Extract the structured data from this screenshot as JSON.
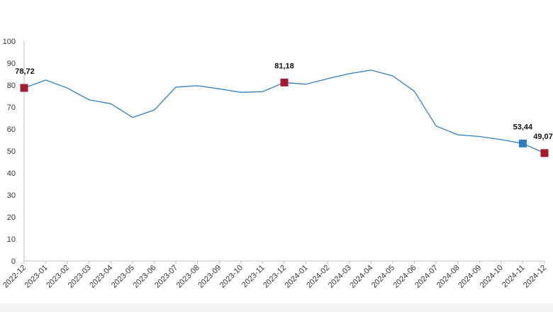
{
  "chart_data": {
    "type": "line",
    "title": "",
    "xlabel": "",
    "ylabel": "",
    "ylim": [
      0,
      100
    ],
    "yticks": [
      0,
      10,
      20,
      30,
      40,
      50,
      60,
      70,
      80,
      90,
      100
    ],
    "grid": false,
    "legend": "none",
    "line_color": "#2e7fc1",
    "categories": [
      "2022-12",
      "2023-01",
      "2023-02",
      "2023-03",
      "2023-04",
      "2023-05",
      "2023-06",
      "2023-07",
      "2023-08",
      "2023-09",
      "2023-10",
      "2023-11",
      "2023-12",
      "2024-01",
      "2024-02",
      "2024-03",
      "2024-04",
      "2024-05",
      "2024-06",
      "2024-07",
      "2024-08",
      "2024-09",
      "2024-10",
      "2024-11",
      "2024-12"
    ],
    "series": [
      {
        "values": [
          78.72,
          82.3,
          78.6,
          73.3,
          71.5,
          65.3,
          68.6,
          79.1,
          79.7,
          78.3,
          76.7,
          77.0,
          81.18,
          80.4,
          82.9,
          85.2,
          86.8,
          84.2,
          77.2,
          61.4,
          57.4,
          56.6,
          55.2,
          53.44,
          49.07
        ]
      }
    ],
    "highlights": [
      {
        "index": 0,
        "label": "78,72",
        "color": "#a6192e"
      },
      {
        "index": 12,
        "label": "81,18",
        "color": "#a6192e"
      },
      {
        "index": 23,
        "label": "53,44",
        "color": "#2e7fc1"
      },
      {
        "index": 24,
        "label": "49,07",
        "color": "#a6192e"
      }
    ]
  }
}
